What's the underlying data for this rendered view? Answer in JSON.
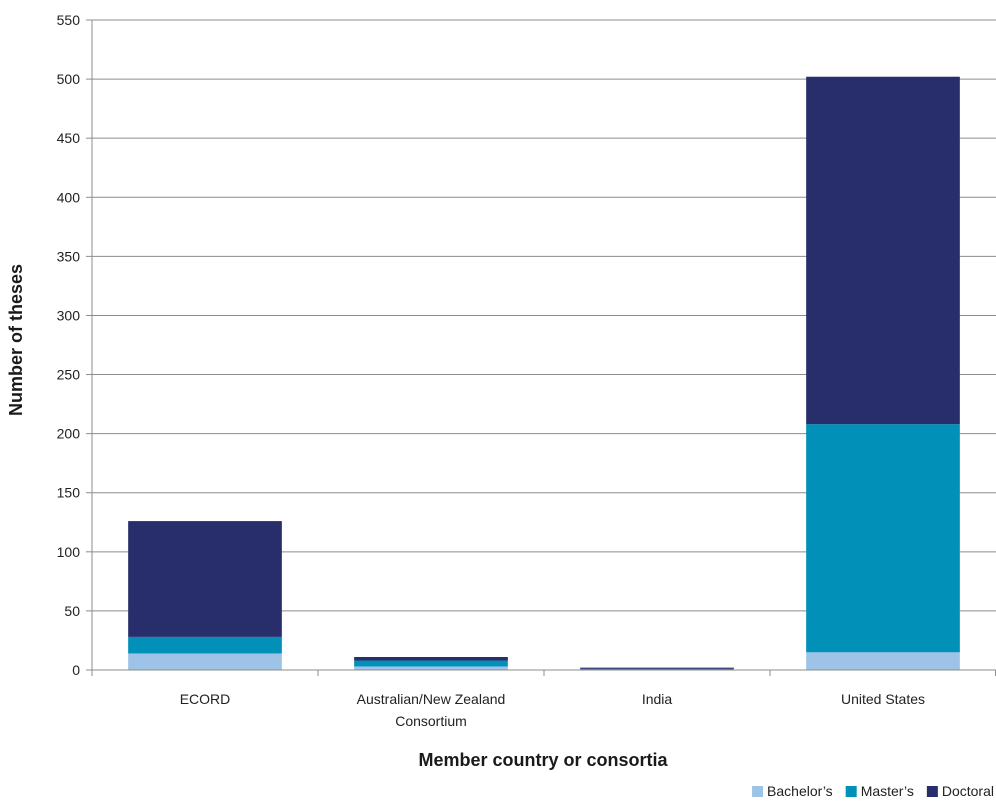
{
  "chart_data": {
    "type": "bar",
    "stacked": true,
    "categories": [
      [
        "ECORD"
      ],
      [
        "Australian/New Zealand",
        "Consortium"
      ],
      [
        "India"
      ],
      [
        "United States"
      ]
    ],
    "series": [
      {
        "name": "Bachelor’s",
        "color": "#9dc3e6",
        "values": [
          14,
          3,
          0,
          15
        ]
      },
      {
        "name": "Master’s",
        "color": "#0090b8",
        "values": [
          14,
          5,
          1,
          193
        ]
      },
      {
        "name": "Doctoral",
        "color": "#272e6b",
        "values": [
          98,
          3,
          1,
          294
        ]
      }
    ],
    "xlabel": "Member country or consortia",
    "ylabel": "Number of theses",
    "ylim": [
      0,
      550
    ],
    "yticks": [
      0,
      50,
      100,
      150,
      200,
      250,
      300,
      350,
      400,
      450,
      500,
      550
    ],
    "grid": true,
    "legend_position": "bottom-right"
  }
}
